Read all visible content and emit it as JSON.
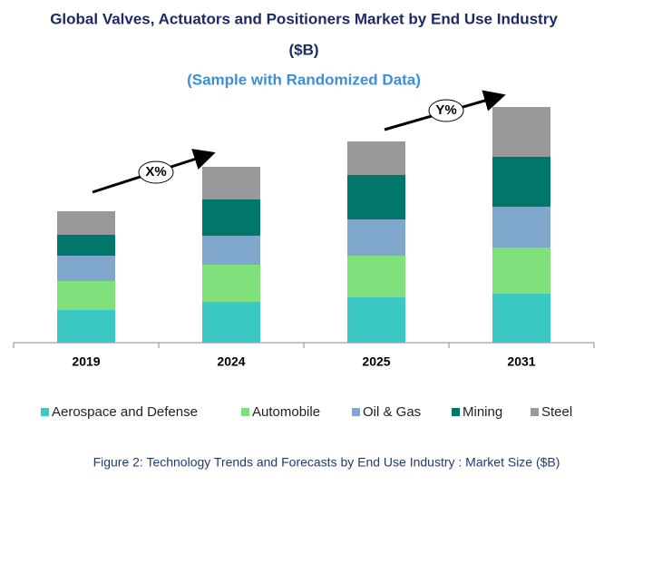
{
  "chart_data": {
    "type": "stacked-bar",
    "title": [
      "Global Valves, Actuators and Positioners Market by End Use Industry",
      "($B)"
    ],
    "subtitle": "(Sample with Randomized Data)",
    "categories": [
      "2019",
      "2024",
      "2025",
      "2031"
    ],
    "series": [
      {
        "name": "Aerospace and Defense",
        "color": "#3cc9c6",
        "values": [
          36,
          45,
          50,
          54
        ]
      },
      {
        "name": "Automobile",
        "color": "#7fe07c",
        "values": [
          32,
          41,
          46,
          51
        ]
      },
      {
        "name": "Oil & Gas",
        "color": "#7fa6cb",
        "values": [
          28,
          32,
          40,
          45
        ]
      },
      {
        "name": "Mining",
        "color": "#00776a",
        "values": [
          23,
          40,
          49,
          55
        ]
      },
      {
        "name": "Steel",
        "color": "#999999",
        "values": [
          26,
          36,
          37,
          55
        ]
      }
    ],
    "ylim": [
      0,
      270
    ],
    "annotations": [
      "X%",
      "Y%"
    ],
    "caption": "Figure 2: Technology  Trends  and Forecasts by  End Use Industry  : Market Size ($B)"
  }
}
